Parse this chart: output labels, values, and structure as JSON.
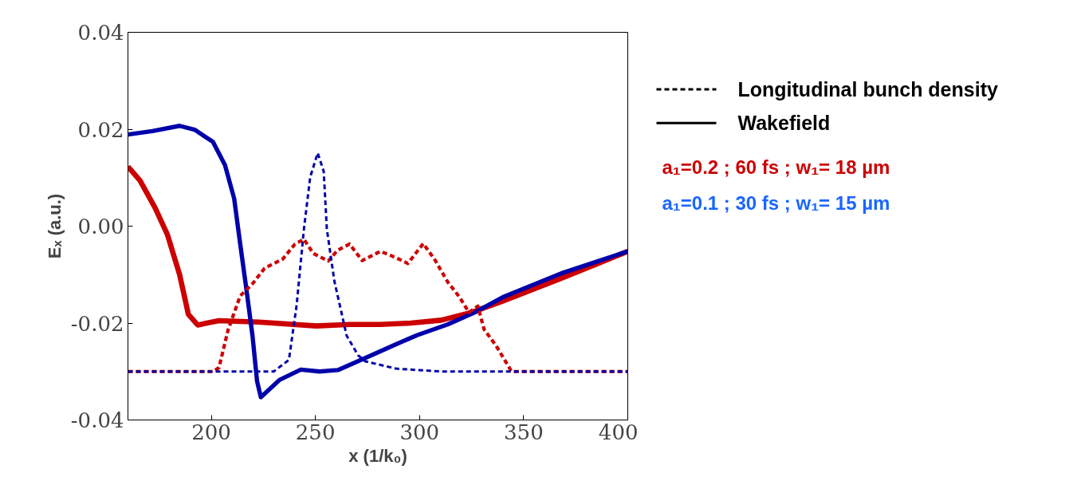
{
  "chart_data": {
    "type": "line",
    "xlabel": "x (1/k₀)",
    "ylabel": "Eₓ (a.u.)",
    "xlim": [
      160,
      400
    ],
    "ylim": [
      -0.04,
      0.04
    ],
    "xticks": [
      200,
      250,
      300,
      350,
      400
    ],
    "yticks": [
      {
        "value": 0.04,
        "label": "0.04"
      },
      {
        "value": 0.02,
        "label": "0.02"
      },
      {
        "value": 0,
        "label": "0.00"
      },
      {
        "value": -0.02,
        "label": "-0.02"
      },
      {
        "value": -0.04,
        "label": "-0.04"
      }
    ],
    "grid": false,
    "marker": "none",
    "annotations": [
      "Longitudinal bunch density",
      "Wakefield",
      "a₁=0.2 ; 60 fs ; w₁= 18 µm",
      "a₁=0.1 ; 30 fs ; w₁= 15 µm"
    ],
    "series": [
      {
        "color": "#cc0000",
        "line_style": "solid",
        "x": [
          160,
          165.8,
          173,
          179,
          184.8,
          189,
          193.5,
          203.7,
          222.7,
          250.4,
          266.7,
          281.3,
          295.9,
          310.5,
          325,
          339.8,
          369,
          400
        ],
        "values": [
          0.0123,
          0.0094,
          0.0038,
          -0.0018,
          -0.01,
          -0.0182,
          -0.0204,
          -0.0195,
          -0.0198,
          -0.0206,
          -0.0203,
          -0.0203,
          -0.02,
          -0.0194,
          -0.0178,
          -0.0155,
          -0.0106,
          -0.0052
        ]
      },
      {
        "color": "#0000aa",
        "line_style": "solid",
        "x": [
          160,
          171.7,
          184.8,
          192,
          200.8,
          206.6,
          211,
          213.9,
          216.9,
          219.8,
          222,
          223.8,
          232.9,
          243,
          252,
          260.8,
          274,
          288.6,
          298.8,
          313.5,
          326.6,
          339.8,
          369,
          400
        ],
        "values": [
          0.0189,
          0.0196,
          0.0207,
          0.0199,
          0.0174,
          0.0126,
          0.0057,
          -0.0037,
          -0.0131,
          -0.0226,
          -0.032,
          -0.0353,
          -0.0317,
          -0.0296,
          -0.03,
          -0.0297,
          -0.0272,
          -0.0244,
          -0.0225,
          -0.0203,
          -0.0178,
          -0.0147,
          -0.0096,
          -0.0052
        ]
      },
      {
        "color": "#cc0000",
        "line_style": "dashed",
        "x": [
          160,
          200.8,
          203.7,
          208.1,
          213.9,
          219.8,
          225.6,
          234.3,
          240.2,
          244.5,
          248.9,
          256.2,
          260.6,
          266.4,
          272.5,
          281.3,
          288.6,
          294.4,
          301.8,
          307.6,
          313.5,
          319.3,
          323.7,
          328,
          331,
          336.8,
          344.2,
          400
        ],
        "values": [
          -0.03,
          -0.03,
          -0.0292,
          -0.0214,
          -0.0144,
          -0.0119,
          -0.0087,
          -0.0068,
          -0.0037,
          -0.0027,
          -0.0056,
          -0.0072,
          -0.005,
          -0.0037,
          -0.0071,
          -0.0052,
          -0.0065,
          -0.0077,
          -0.0036,
          -0.0071,
          -0.0115,
          -0.0147,
          -0.0178,
          -0.0165,
          -0.0213,
          -0.0247,
          -0.03,
          -0.03
        ]
      },
      {
        "color": "#0000aa",
        "line_style": "dashed",
        "x": [
          160,
          230,
          237.3,
          241,
          244.5,
          247.5,
          251.1,
          254,
          255.5,
          259.1,
          265,
          270.6,
          274,
          288.6,
          310.5,
          400
        ],
        "values": [
          -0.03,
          -0.03,
          -0.0276,
          -0.0163,
          -0.0006,
          0.0101,
          0.0151,
          0.0113,
          -0.0006,
          -0.0113,
          -0.0226,
          -0.0267,
          -0.0279,
          -0.0294,
          -0.03,
          -0.03
        ]
      }
    ]
  }
}
